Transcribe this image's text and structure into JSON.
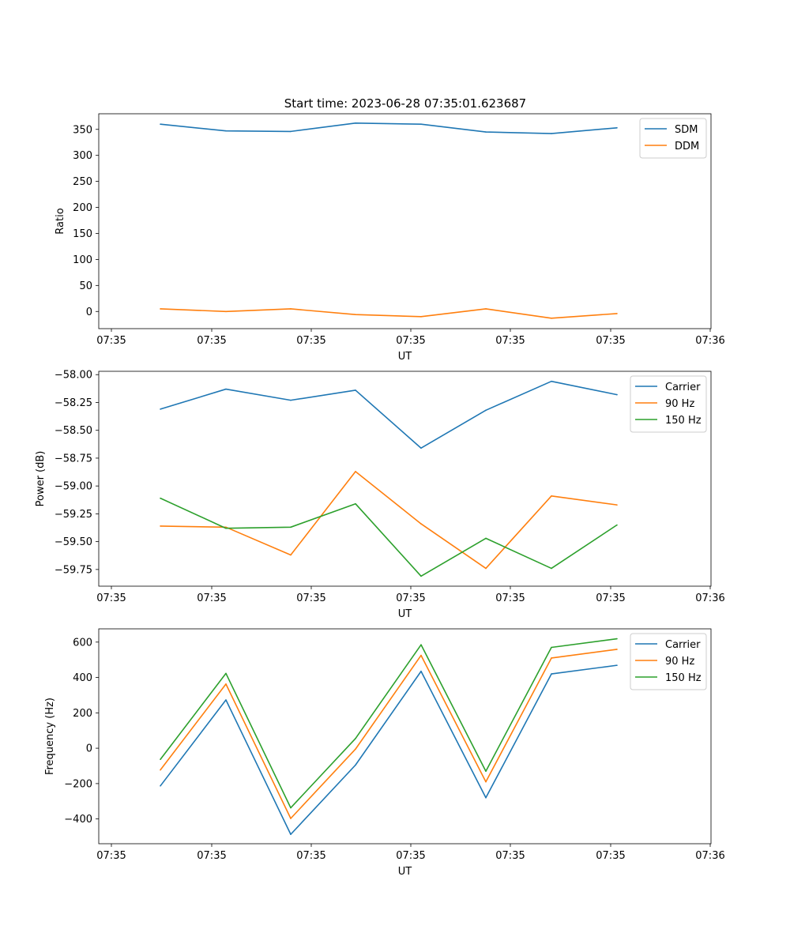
{
  "figure_title": "Start time: 2023-06-28 07:35:01.623687",
  "chart_data": [
    {
      "type": "line",
      "title": "Start time: 2023-06-28 07:35:01.623687",
      "xlabel": "UT",
      "ylabel": "Ratio",
      "x_tick_labels": [
        "07:35",
        "07:35",
        "07:35",
        "07:35",
        "07:35",
        "07:35",
        "07:36"
      ],
      "y_ticks": [
        0,
        50,
        100,
        150,
        200,
        250,
        300,
        350
      ],
      "y_tick_labels": [
        "0",
        "50",
        "100",
        "150",
        "200",
        "250",
        "300",
        "350"
      ],
      "ylim": [
        -33,
        380
      ],
      "legend_position": "top-right",
      "series": [
        {
          "name": "SDM",
          "color": "#1f77b4",
          "values": [
            360,
            347,
            346,
            362,
            360,
            345,
            342,
            353
          ]
        },
        {
          "name": "DDM",
          "color": "#ff7f0e",
          "values": [
            5,
            0,
            5,
            -6,
            -10,
            5,
            -13,
            -4
          ]
        }
      ]
    },
    {
      "type": "line",
      "title": "",
      "xlabel": "UT",
      "ylabel": "Power (dB)",
      "x_tick_labels": [
        "07:35",
        "07:35",
        "07:35",
        "07:35",
        "07:35",
        "07:35",
        "07:36"
      ],
      "y_ticks": [
        -59.75,
        -59.5,
        -59.25,
        -59.0,
        -58.75,
        -58.5,
        -58.25,
        -58.0
      ],
      "y_tick_labels": [
        "−59.75",
        "−59.50",
        "−59.25",
        "−59.00",
        "−58.75",
        "−58.50",
        "−58.25",
        "−58.00"
      ],
      "ylim": [
        -59.9,
        -57.97
      ],
      "legend_position": "top-right",
      "series": [
        {
          "name": "Carrier",
          "color": "#1f77b4",
          "values": [
            -58.31,
            -58.13,
            -58.23,
            -58.14,
            -58.66,
            -58.32,
            -58.06,
            -58.18
          ]
        },
        {
          "name": "90 Hz",
          "color": "#ff7f0e",
          "values": [
            -59.36,
            -59.37,
            -59.62,
            -58.87,
            -59.34,
            -59.74,
            -59.09,
            -59.17
          ]
        },
        {
          "name": "150 Hz",
          "color": "#2ca02c",
          "values": [
            -59.11,
            -59.38,
            -59.37,
            -59.16,
            -59.81,
            -59.47,
            -59.74,
            -59.35
          ]
        }
      ]
    },
    {
      "type": "line",
      "title": "",
      "xlabel": "UT",
      "ylabel": "Frequency (Hz)",
      "x_tick_labels": [
        "07:35",
        "07:35",
        "07:35",
        "07:35",
        "07:35",
        "07:35",
        "07:36"
      ],
      "y_ticks": [
        -400,
        -200,
        0,
        200,
        400,
        600
      ],
      "y_tick_labels": [
        "−400",
        "−200",
        "0",
        "200",
        "400",
        "600"
      ],
      "ylim": [
        -540,
        675
      ],
      "legend_position": "top-right",
      "series": [
        {
          "name": "Carrier",
          "color": "#1f77b4",
          "values": [
            -213,
            273,
            -487,
            -95,
            435,
            -280,
            420,
            469
          ]
        },
        {
          "name": "90 Hz",
          "color": "#ff7f0e",
          "values": [
            -123,
            363,
            -397,
            -5,
            525,
            -190,
            510,
            559
          ]
        },
        {
          "name": "150 Hz",
          "color": "#2ca02c",
          "values": [
            -63,
            423,
            -337,
            55,
            585,
            -130,
            570,
            619
          ]
        }
      ]
    }
  ]
}
